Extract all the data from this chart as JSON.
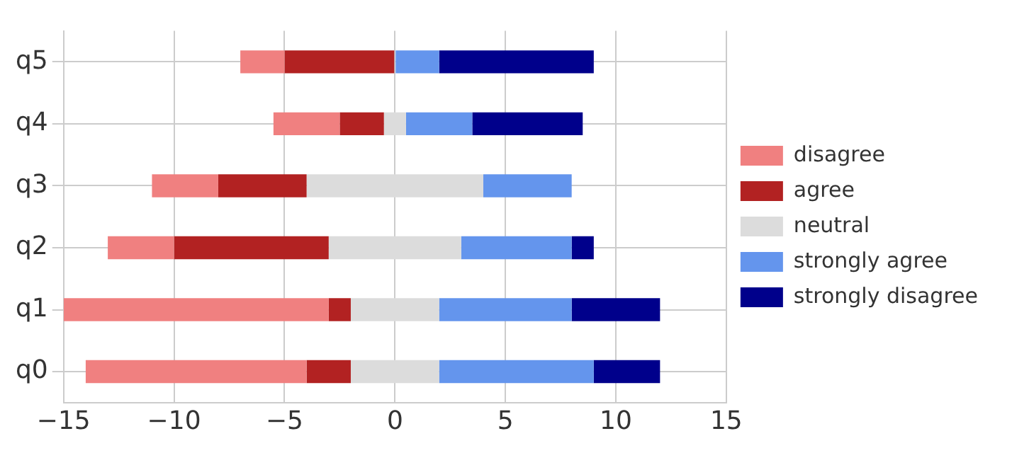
{
  "chart_data": {
    "type": "bar",
    "orientation": "horizontal",
    "categories": [
      "q5",
      "q4",
      "q3",
      "q2",
      "q1",
      "q0"
    ],
    "series": [
      {
        "name": "disagree",
        "color": "#f08080",
        "base": [
          -7,
          -5.5,
          -11,
          -13,
          -15,
          -14
        ],
        "values": [
          2,
          3,
          3,
          3,
          12,
          10
        ]
      },
      {
        "name": "agree",
        "color": "#b22222",
        "base": [
          -5,
          -2.5,
          -8,
          -10,
          -3,
          -4
        ],
        "values": [
          5,
          2,
          4,
          7,
          1,
          2
        ]
      },
      {
        "name": "neutral",
        "color": "#dcdcdc",
        "base": [
          null,
          -0.5,
          -4,
          -3,
          -2,
          -2
        ],
        "values": [
          null,
          1,
          8,
          6,
          4,
          4
        ]
      },
      {
        "name": "strongly agree",
        "color": "#6495ed",
        "base": [
          0,
          0.5,
          4,
          3,
          2,
          2
        ],
        "values": [
          2,
          3,
          4,
          5,
          6,
          7
        ]
      },
      {
        "name": "strongly disagree",
        "color": "#00008b",
        "base": [
          2,
          3.5,
          null,
          8,
          8,
          9
        ],
        "values": [
          7,
          5,
          null,
          1,
          4,
          3
        ]
      }
    ],
    "xlim": [
      -15,
      15
    ],
    "xticks": [
      -15,
      -10,
      -5,
      0,
      5,
      10,
      15
    ],
    "grid": true,
    "legend": "right"
  }
}
